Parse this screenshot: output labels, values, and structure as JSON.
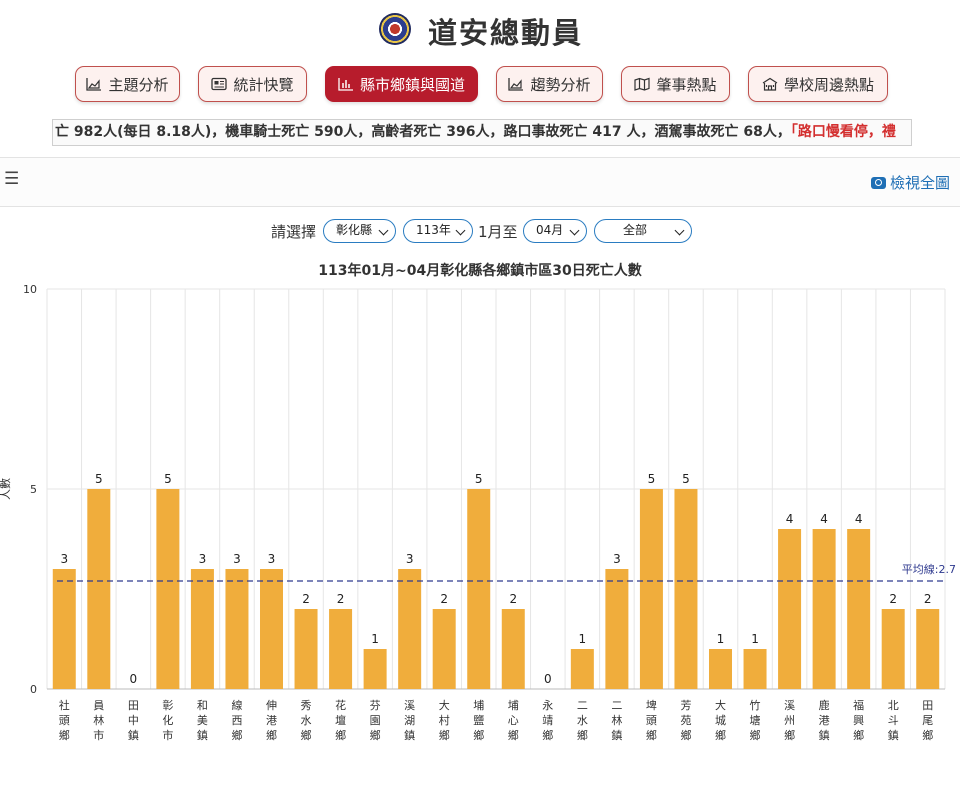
{
  "header": {
    "title": "道安總動員",
    "logo_icon": "police-emblem-icon"
  },
  "nav": [
    {
      "label": "主題分析",
      "icon": "area-chart-icon",
      "active": false
    },
    {
      "label": "統計快覽",
      "icon": "newspaper-icon",
      "active": false
    },
    {
      "label": "縣市鄉鎮與國道",
      "icon": "bar-chart-icon",
      "active": true
    },
    {
      "label": "趨勢分析",
      "icon": "area-chart-icon",
      "active": false
    },
    {
      "label": "肇事熱點",
      "icon": "map-icon",
      "active": false
    },
    {
      "label": "學校周邊熱點",
      "icon": "school-icon",
      "active": false
    }
  ],
  "ticker": {
    "text": "亡 982人(每日 8.18人)，機車騎士死亡 590人，高齡者死亡 396人，路口事故死亡 417 人，酒駕事故死亡 68人，",
    "highlight": "「路口慢看停，禮"
  },
  "toolbar": {
    "menu_icon": "hamburger-icon",
    "view_full_label": "檢視全圖",
    "camera_icon": "camera-icon"
  },
  "filters": {
    "prompt": "請選擇",
    "county": "彰化縣",
    "year": "113年",
    "from_label": "1月至",
    "month": "04月",
    "category": "全部"
  },
  "colors": {
    "bar": "#f0ad3c",
    "avg_line": "#2f3a8f",
    "nav_active": "#b71c2c",
    "nav_border": "#c0504d"
  },
  "chart_data": {
    "type": "bar",
    "title": "113年01月~04月彰化縣各鄉鎮市區30日死亡人數",
    "ylabel": "人數",
    "xlabel": "",
    "ylim": [
      0,
      10
    ],
    "yticks": [
      0,
      5,
      10
    ],
    "grid": true,
    "average": {
      "label": "平均線:2.7",
      "value": 2.7
    },
    "categories": [
      "社頭鄉",
      "員林市",
      "田中鎮",
      "彰化市",
      "和美鎮",
      "線西鄉",
      "伸港鄉",
      "秀水鄉",
      "花壇鄉",
      "芬園鄉",
      "溪湖鎮",
      "大村鄉",
      "埔鹽鄉",
      "埔心鄉",
      "永靖鄉",
      "二水鄉",
      "二林鎮",
      "埤頭鄉",
      "芳苑鄉",
      "大城鄉",
      "竹塘鄉",
      "溪州鄉",
      "鹿港鎮",
      "福興鄉",
      "北斗鎮",
      "田尾鄉"
    ],
    "values": [
      3,
      5,
      0,
      5,
      3,
      3,
      3,
      2,
      2,
      1,
      3,
      2,
      5,
      2,
      0,
      1,
      3,
      5,
      5,
      1,
      1,
      4,
      4,
      4,
      2,
      2
    ]
  }
}
